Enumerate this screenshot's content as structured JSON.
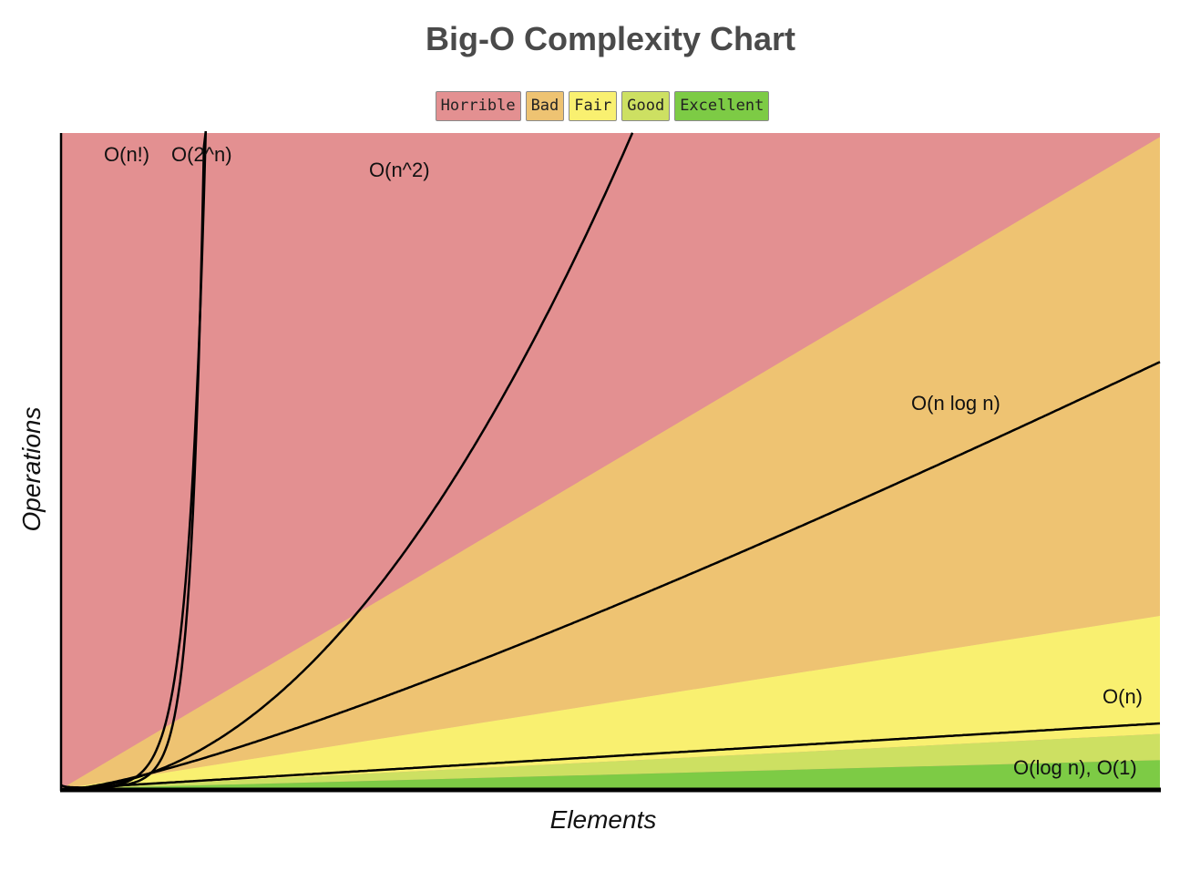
{
  "chart_data": {
    "type": "line",
    "title": "Big-O Complexity Chart",
    "xlabel": "Elements",
    "ylabel": "Operations",
    "legend": {
      "placement": "top-center",
      "items": [
        {
          "label": "Horrible",
          "color": "#e39091"
        },
        {
          "label": "Bad",
          "color": "#eec372"
        },
        {
          "label": "Fair",
          "color": "#f9f070"
        },
        {
          "label": "Good",
          "color": "#cde062"
        },
        {
          "label": "Excellent",
          "color": "#7dcb45"
        }
      ]
    },
    "xlim": [
      0,
      100
    ],
    "ylim": [
      0,
      1000
    ],
    "grid": false,
    "regions": [
      {
        "name": "Horrible",
        "color": "#e39091"
      },
      {
        "name": "Bad",
        "color": "#eec372"
      },
      {
        "name": "Fair",
        "color": "#f9f070"
      },
      {
        "name": "Good",
        "color": "#cde062"
      },
      {
        "name": "Excellent",
        "color": "#7dcb45"
      }
    ],
    "series": [
      {
        "name": "O(n!)",
        "func": "factorial"
      },
      {
        "name": "O(2^n)",
        "func": "exp2"
      },
      {
        "name": "O(n^2)",
        "func": "square"
      },
      {
        "name": "O(n log n)",
        "func": "nlogn"
      },
      {
        "name": "O(n)",
        "func": "linear"
      },
      {
        "name": "O(log n), O(1)",
        "func": "log"
      }
    ]
  }
}
